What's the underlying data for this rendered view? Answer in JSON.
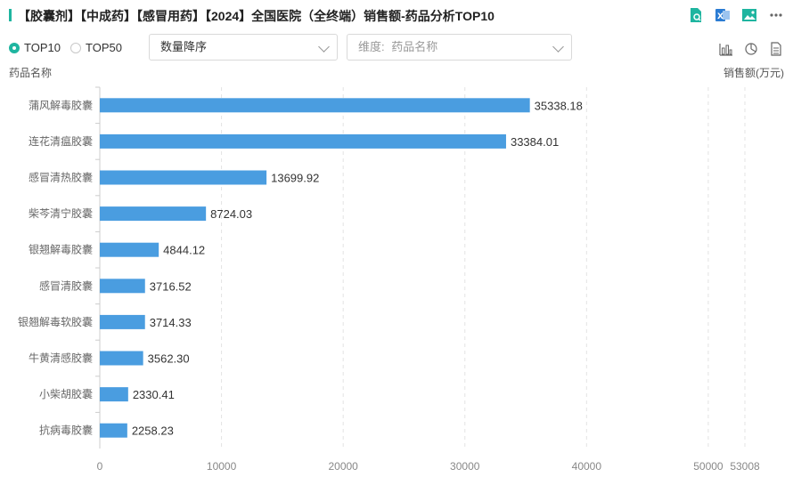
{
  "header": {
    "title": "【胶囊剂】【中成药】【感冒用药】【2024】全国医院（全终端）销售额-药品分析TOP10",
    "icons": [
      "search-doc-icon",
      "excel-export-icon",
      "image-export-icon",
      "more-icon"
    ]
  },
  "controls": {
    "radios": [
      {
        "label": "TOP10",
        "checked": true
      },
      {
        "label": "TOP50",
        "checked": false
      }
    ],
    "sort_select": {
      "value": "数量降序"
    },
    "dimension_select": {
      "label": "维度:",
      "value": "药品名称"
    },
    "chart_icons": [
      "bar-chart-icon",
      "pie-chart-icon",
      "table-icon"
    ]
  },
  "colors": {
    "accent": "#1fb5a0",
    "bar": "#4a9de0"
  },
  "chart_data": {
    "type": "bar",
    "orientation": "horizontal",
    "ylabel": "药品名称",
    "xlabel": "销售额(万元)",
    "categories": [
      "蒲风解毒胶囊",
      "连花清瘟胶囊",
      "感冒清热胶囊",
      "柴芩清宁胶囊",
      "银翘解毒胶囊",
      "感冒清胶囊",
      "银翘解毒软胶囊",
      "牛黄清感胶囊",
      "小柴胡胶囊",
      "抗病毒胶囊"
    ],
    "values": [
      35338.18,
      33384.01,
      13699.92,
      8724.03,
      4844.12,
      3716.52,
      3714.33,
      3562.3,
      2330.41,
      2258.23
    ],
    "value_labels": [
      "35338.18",
      "33384.01",
      "13699.92",
      "8724.03",
      "4844.12",
      "3716.52",
      "3714.33",
      "3562.30",
      "2330.41",
      "2258.23"
    ],
    "x_ticks": [
      0,
      10000,
      20000,
      30000,
      40000,
      50000,
      53008
    ],
    "x_tick_labels": [
      "0",
      "10000",
      "20000",
      "30000",
      "40000",
      "50000",
      "53008"
    ],
    "xlim": [
      0,
      53008
    ],
    "grid": true
  }
}
